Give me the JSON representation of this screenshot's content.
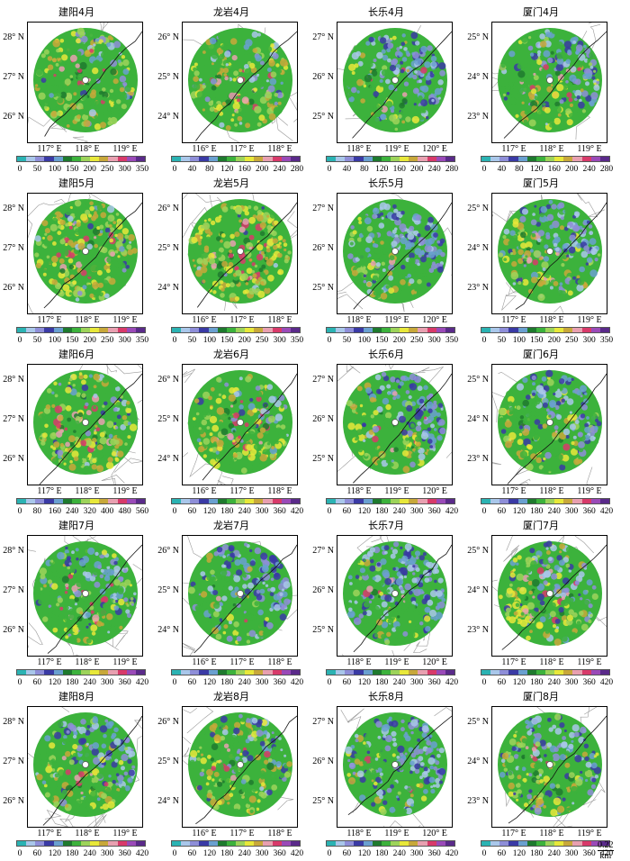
{
  "colors": [
    "#2bb3b3",
    "#a9c7ea",
    "#8e8ed8",
    "#3a3aa5",
    "#6aa0d0",
    "#1e7a2e",
    "#3cb23c",
    "#9dd35a",
    "#e8e83a",
    "#c8a83a",
    "#e8a0b0",
    "#d83a6a",
    "#9a4ab8",
    "#5a2a8a"
  ],
  "scale_bar": {
    "value": "0.22",
    "unit": "km"
  },
  "panels": [
    {
      "title": "建阳4月",
      "ylabels": [
        "28° N",
        "27° N",
        "26° N"
      ],
      "xlabels": [
        "117° E",
        "118° E",
        "119° E"
      ],
      "cticks": [
        "0",
        "50",
        "100",
        "150",
        "200",
        "250",
        "300",
        "350"
      ],
      "density": 0.6,
      "blue": 0.1
    },
    {
      "title": "龙岩4月",
      "ylabels": [
        "26° N",
        "25° N",
        "24° N"
      ],
      "xlabels": [
        "116° E",
        "117° E",
        "118° E"
      ],
      "cticks": [
        "0",
        "40",
        "80",
        "120",
        "160",
        "200",
        "240",
        "280"
      ],
      "density": 0.55,
      "blue": 0.2
    },
    {
      "title": "长乐4月",
      "ylabels": [
        "27° N",
        "26° N",
        "25° N"
      ],
      "xlabels": [
        "118° E",
        "119° E",
        "120° E"
      ],
      "cticks": [
        "0",
        "40",
        "80",
        "120",
        "160",
        "200",
        "240",
        "280"
      ],
      "density": 0.45,
      "blue": 0.5
    },
    {
      "title": "厦门4月",
      "ylabels": [
        "25° N",
        "24° N",
        "23° N"
      ],
      "xlabels": [
        "117° E",
        "118° E",
        "119° E"
      ],
      "cticks": [
        "0",
        "40",
        "80",
        "120",
        "160",
        "200",
        "240",
        "280"
      ],
      "density": 0.45,
      "blue": 0.3
    },
    {
      "title": "建阳5月",
      "ylabels": [
        "28° N",
        "27° N",
        "26° N"
      ],
      "xlabels": [
        "117° E",
        "118° E",
        "119° E"
      ],
      "cticks": [
        "0",
        "50",
        "100",
        "150",
        "200",
        "250",
        "300",
        "350"
      ],
      "density": 0.7,
      "blue": 0.1
    },
    {
      "title": "龙岩5月",
      "ylabels": [
        "26° N",
        "25° N",
        "24° N"
      ],
      "xlabels": [
        "116° E",
        "117° E",
        "118° E"
      ],
      "cticks": [
        "0",
        "50",
        "100",
        "150",
        "200",
        "250",
        "300",
        "350"
      ],
      "density": 0.85,
      "blue": 0.05
    },
    {
      "title": "长乐5月",
      "ylabels": [
        "27° N",
        "26° N",
        "25° N"
      ],
      "xlabels": [
        "118° E",
        "119° E",
        "120° E"
      ],
      "cticks": [
        "0",
        "50",
        "100",
        "150",
        "200",
        "250",
        "300",
        "350"
      ],
      "density": 0.3,
      "blue": 0.7
    },
    {
      "title": "厦门5月",
      "ylabels": [
        "25° N",
        "24° N",
        "23° N"
      ],
      "xlabels": [
        "117° E",
        "118° E",
        "119° E"
      ],
      "cticks": [
        "0",
        "50",
        "100",
        "150",
        "200",
        "250",
        "300",
        "350"
      ],
      "density": 0.5,
      "blue": 0.5
    },
    {
      "title": "建阳6月",
      "ylabels": [
        "28° N",
        "27° N",
        "26° N"
      ],
      "xlabels": [
        "117° E",
        "118° E",
        "119° E"
      ],
      "cticks": [
        "0",
        "80",
        "160",
        "240",
        "320",
        "400",
        "480",
        "560"
      ],
      "density": 0.65,
      "blue": 0.15
    },
    {
      "title": "龙岩6月",
      "ylabels": [
        "26° N",
        "25° N",
        "24° N"
      ],
      "xlabels": [
        "116° E",
        "117° E",
        "118° E"
      ],
      "cticks": [
        "0",
        "60",
        "120",
        "180",
        "240",
        "300",
        "360",
        "420"
      ],
      "density": 0.6,
      "blue": 0.15
    },
    {
      "title": "长乐6月",
      "ylabels": [
        "27° N",
        "26° N",
        "25° N"
      ],
      "xlabels": [
        "118° E",
        "119° E",
        "120° E"
      ],
      "cticks": [
        "0",
        "60",
        "120",
        "180",
        "240",
        "300",
        "360",
        "420"
      ],
      "density": 0.45,
      "blue": 0.5
    },
    {
      "title": "厦门6月",
      "ylabels": [
        "25° N",
        "24° N",
        "23° N"
      ],
      "xlabels": [
        "117° E",
        "118° E",
        "119° E"
      ],
      "cticks": [
        "0",
        "60",
        "120",
        "180",
        "240",
        "300",
        "360",
        "420"
      ],
      "density": 0.5,
      "blue": 0.45
    },
    {
      "title": "建阳7月",
      "ylabels": [
        "28° N",
        "27° N",
        "26° N"
      ],
      "xlabels": [
        "117° E",
        "118° E",
        "119° E"
      ],
      "cticks": [
        "0",
        "60",
        "120",
        "180",
        "240",
        "300",
        "360",
        "420"
      ],
      "density": 0.45,
      "blue": 0.35
    },
    {
      "title": "龙岩7月",
      "ylabels": [
        "26° N",
        "25° N",
        "24° N"
      ],
      "xlabels": [
        "116° E",
        "117° E",
        "118° E"
      ],
      "cticks": [
        "0",
        "60",
        "120",
        "180",
        "240",
        "300",
        "360",
        "420"
      ],
      "density": 0.3,
      "blue": 0.6
    },
    {
      "title": "长乐7月",
      "ylabels": [
        "27° N",
        "26° N",
        "25° N"
      ],
      "xlabels": [
        "118° E",
        "119° E",
        "120° E"
      ],
      "cticks": [
        "0",
        "60",
        "120",
        "180",
        "240",
        "300",
        "360",
        "420"
      ],
      "density": 0.25,
      "blue": 0.8
    },
    {
      "title": "厦门7月",
      "ylabels": [
        "25° N",
        "24° N",
        "23° N"
      ],
      "xlabels": [
        "117° E",
        "118° E",
        "119° E"
      ],
      "cticks": [
        "0",
        "60",
        "120",
        "180",
        "240",
        "300",
        "360",
        "420"
      ],
      "density": 0.55,
      "blue": 0.4
    },
    {
      "title": "建阳8月",
      "ylabels": [
        "28° N",
        "27° N",
        "26° N"
      ],
      "xlabels": [
        "117° E",
        "118° E",
        "119° E"
      ],
      "cticks": [
        "0",
        "60",
        "120",
        "180",
        "240",
        "300",
        "360",
        "420"
      ],
      "density": 0.45,
      "blue": 0.4
    },
    {
      "title": "龙岩8月",
      "ylabels": [
        "26° N",
        "25° N",
        "24° N"
      ],
      "xlabels": [
        "116° E",
        "117° E",
        "118° E"
      ],
      "cticks": [
        "0",
        "60",
        "120",
        "180",
        "240",
        "300",
        "360",
        "420"
      ],
      "density": 0.5,
      "blue": 0.25
    },
    {
      "title": "长乐8月",
      "ylabels": [
        "27° N",
        "26° N",
        "25° N"
      ],
      "xlabels": [
        "118° E",
        "119° E",
        "120° E"
      ],
      "cticks": [
        "0",
        "60",
        "120",
        "180",
        "240",
        "300",
        "360",
        "420"
      ],
      "density": 0.3,
      "blue": 0.75
    },
    {
      "title": "厦门8月",
      "ylabels": [
        "25° N",
        "24° N",
        "23° N"
      ],
      "xlabels": [
        "117° E",
        "118° E",
        "119° E"
      ],
      "cticks": [
        "0",
        "60",
        "120",
        "180",
        "240",
        "300",
        "360",
        "420"
      ],
      "density": 0.6,
      "blue": 0.45
    }
  ]
}
